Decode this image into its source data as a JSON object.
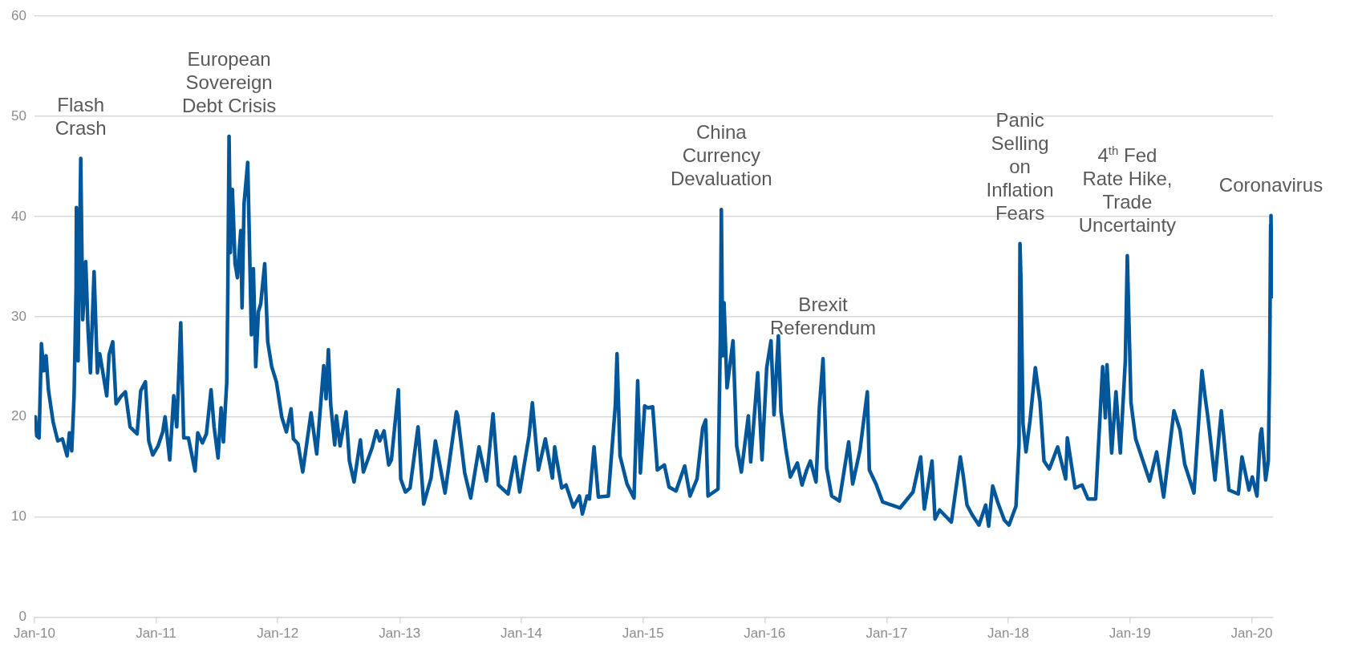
{
  "chart_data": {
    "type": "line",
    "x": [
      "2010-01-04",
      "2010-01-08",
      "2010-01-15",
      "2010-01-22",
      "2010-01-29",
      "2010-02-05",
      "2010-02-12",
      "2010-02-26",
      "2010-03-12",
      "2010-03-26",
      "2010-04-09",
      "2010-04-16",
      "2010-04-23",
      "2010-04-30",
      "2010-05-06",
      "2010-05-07",
      "2010-05-12",
      "2010-05-20",
      "2010-05-26",
      "2010-06-04",
      "2010-06-11",
      "2010-06-18",
      "2010-06-29",
      "2010-07-09",
      "2010-07-16",
      "2010-07-30",
      "2010-08-06",
      "2010-08-13",
      "2010-08-24",
      "2010-09-03",
      "2010-09-17",
      "2010-10-01",
      "2010-10-15",
      "2010-11-05",
      "2010-11-16",
      "2010-11-30",
      "2010-12-10",
      "2010-12-22",
      "2011-01-07",
      "2011-01-21",
      "2011-01-28",
      "2011-02-11",
      "2011-02-23",
      "2011-03-04",
      "2011-03-16",
      "2011-03-25",
      "2011-04-08",
      "2011-04-28",
      "2011-05-06",
      "2011-05-20",
      "2011-06-01",
      "2011-06-15",
      "2011-06-24",
      "2011-07-06",
      "2011-07-15",
      "2011-07-22",
      "2011-08-01",
      "2011-08-04",
      "2011-08-08",
      "2011-08-10",
      "2011-08-12",
      "2011-08-18",
      "2011-08-26",
      "2011-09-02",
      "2011-09-12",
      "2011-09-16",
      "2011-09-22",
      "2011-10-03",
      "2011-10-14",
      "2011-10-20",
      "2011-10-27",
      "2011-11-04",
      "2011-11-11",
      "2011-11-23",
      "2011-12-02",
      "2011-12-14",
      "2011-12-28",
      "2012-01-03",
      "2012-01-13",
      "2012-01-27",
      "2012-02-10",
      "2012-02-17",
      "2012-03-02",
      "2012-03-16",
      "2012-04-10",
      "2012-04-27",
      "2012-05-18",
      "2012-05-25",
      "2012-06-01",
      "2012-06-08",
      "2012-06-20",
      "2012-06-25",
      "2012-07-06",
      "2012-07-24",
      "2012-08-03",
      "2012-08-17",
      "2012-09-05",
      "2012-09-14",
      "2012-10-10",
      "2012-10-23",
      "2012-11-02",
      "2012-11-15",
      "2012-11-29",
      "2012-12-07",
      "2012-12-28",
      "2013-01-04",
      "2013-01-18",
      "2013-02-01",
      "2013-02-25",
      "2013-03-14",
      "2013-04-05",
      "2013-04-18",
      "2013-05-17",
      "2013-06-20",
      "2013-06-24",
      "2013-07-15",
      "2013-08-02",
      "2013-08-27",
      "2013-09-18",
      "2013-10-08",
      "2013-10-24",
      "2013-11-22",
      "2013-12-13",
      "2013-12-27",
      "2014-01-24",
      "2014-02-03",
      "2014-02-21",
      "2014-03-14",
      "2014-04-04",
      "2014-04-11",
      "2014-04-15",
      "2014-05-02",
      "2014-05-15",
      "2014-06-06",
      "2014-06-24",
      "2014-07-03",
      "2014-07-17",
      "2014-07-24",
      "2014-08-07",
      "2014-08-20",
      "2014-09-19",
      "2014-10-10",
      "2014-10-15",
      "2014-10-24",
      "2014-11-14",
      "2014-12-05",
      "2014-12-16",
      "2014-12-24",
      "2015-01-06",
      "2015-01-16",
      "2015-01-30",
      "2015-02-13",
      "2015-03-06",
      "2015-03-20",
      "2015-04-10",
      "2015-05-06",
      "2015-05-22",
      "2015-06-12",
      "2015-06-29",
      "2015-07-08",
      "2015-07-15",
      "2015-08-14",
      "2015-08-21",
      "2015-08-24",
      "2015-08-28",
      "2015-09-01",
      "2015-09-10",
      "2015-09-28",
      "2015-10-09",
      "2015-10-23",
      "2015-11-13",
      "2015-11-20",
      "2015-12-11",
      "2015-12-24",
      "2016-01-07",
      "2016-01-20",
      "2016-01-29",
      "2016-02-11",
      "2016-02-19",
      "2016-03-04",
      "2016-03-18",
      "2016-04-08",
      "2016-04-22",
      "2016-05-06",
      "2016-05-17",
      "2016-06-03",
      "2016-06-13",
      "2016-06-24",
      "2016-07-05",
      "2016-07-20",
      "2016-08-12",
      "2016-09-09",
      "2016-09-21",
      "2016-10-13",
      "2016-11-04",
      "2016-11-10",
      "2016-11-30",
      "2016-12-20",
      "2017-01-06",
      "2017-01-24",
      "2017-02-10",
      "2017-03-21",
      "2017-04-13",
      "2017-04-24",
      "2017-05-17",
      "2017-05-26",
      "2017-06-09",
      "2017-07-14",
      "2017-08-10",
      "2017-08-18",
      "2017-08-30",
      "2017-09-15",
      "2017-10-05",
      "2017-10-25",
      "2017-11-03",
      "2017-11-15",
      "2017-12-01",
      "2017-12-20",
      "2018-01-03",
      "2018-01-24",
      "2018-02-02",
      "2018-02-05",
      "2018-02-08",
      "2018-02-14",
      "2018-02-23",
      "2018-03-07",
      "2018-03-23",
      "2018-04-06",
      "2018-04-18",
      "2018-05-04",
      "2018-05-29",
      "2018-06-22",
      "2018-06-27",
      "2018-07-20",
      "2018-08-10",
      "2018-08-28",
      "2018-09-20",
      "2018-10-11",
      "2018-10-19",
      "2018-10-24",
      "2018-11-07",
      "2018-11-20",
      "2018-12-03",
      "2018-12-18",
      "2018-12-24",
      "2019-01-04",
      "2019-01-18",
      "2019-02-08",
      "2019-03-01",
      "2019-03-22",
      "2019-04-12",
      "2019-05-13",
      "2019-05-31",
      "2019-06-14",
      "2019-07-12",
      "2019-08-05",
      "2019-08-14",
      "2019-08-23",
      "2019-09-13",
      "2019-10-02",
      "2019-10-25",
      "2019-11-22",
      "2019-12-03",
      "2019-12-24",
      "2020-01-03",
      "2020-01-17",
      "2020-01-27",
      "2020-01-31",
      "2020-02-12",
      "2020-02-20",
      "2020-02-24",
      "2020-02-27",
      "2020-02-28",
      "2020-03-02",
      "2020-03-03",
      "2020-03-04"
    ],
    "series": [
      {
        "color": "#02569a",
        "values": [
          20.0,
          18.1,
          17.9,
          27.3,
          24.6,
          26.1,
          22.7,
          19.5,
          17.6,
          17.8,
          16.1,
          18.4,
          16.6,
          22.1,
          32.8,
          40.9,
          25.6,
          45.8,
          29.7,
          35.5,
          28.6,
          24.4,
          34.5,
          24.4,
          26.3,
          23.5,
          22.1,
          26.2,
          27.5,
          21.3,
          22.0,
          22.5,
          19.0,
          18.3,
          22.6,
          23.5,
          17.6,
          16.2,
          17.1,
          18.5,
          20.0,
          15.7,
          22.1,
          19.0,
          29.4,
          17.9,
          17.9,
          14.6,
          18.4,
          17.4,
          18.3,
          22.7,
          19.0,
          15.9,
          20.9,
          17.5,
          23.4,
          31.7,
          48.0,
          42.9,
          36.4,
          42.7,
          35.3,
          33.9,
          38.6,
          30.9,
          41.3,
          45.4,
          28.2,
          34.8,
          25.0,
          30.5,
          31.3,
          35.3,
          27.5,
          25.0,
          23.5,
          22.2,
          20.0,
          18.5,
          20.8,
          17.8,
          17.3,
          14.5,
          20.4,
          16.3,
          25.1,
          21.8,
          26.7,
          21.2,
          17.2,
          20.1,
          17.1,
          20.5,
          15.6,
          13.5,
          17.7,
          14.5,
          16.9,
          18.6,
          17.6,
          18.6,
          15.2,
          15.7,
          22.7,
          13.8,
          12.5,
          12.9,
          19.0,
          11.3,
          13.9,
          17.6,
          12.4,
          20.5,
          20.1,
          14.4,
          11.9,
          17.0,
          13.6,
          20.3,
          13.2,
          12.3,
          16.0,
          12.5,
          18.1,
          21.4,
          14.7,
          17.8,
          13.9,
          17.0,
          16.1,
          12.9,
          13.2,
          11.0,
          12.1,
          10.3,
          12.1,
          11.8,
          17.0,
          12.0,
          12.1,
          21.2,
          26.3,
          16.1,
          13.3,
          11.9,
          23.6,
          14.4,
          21.1,
          20.9,
          21.0,
          14.7,
          15.2,
          13.0,
          12.6,
          15.1,
          12.1,
          13.8,
          18.9,
          19.7,
          12.1,
          12.8,
          28.0,
          40.7,
          26.1,
          31.4,
          22.9,
          27.6,
          17.1,
          14.5,
          20.1,
          15.5,
          24.4,
          15.7,
          24.9,
          27.6,
          20.2,
          28.1,
          20.5,
          16.9,
          14.0,
          15.4,
          13.2,
          14.7,
          15.6,
          13.5,
          20.9,
          25.8,
          14.9,
          12.1,
          11.6,
          17.5,
          13.3,
          16.7,
          22.5,
          14.7,
          13.3,
          11.5,
          11.3,
          11.1,
          10.9,
          12.5,
          16.0,
          10.8,
          15.6,
          9.8,
          10.7,
          9.5,
          16.0,
          14.3,
          11.2,
          10.2,
          9.2,
          11.2,
          9.1,
          13.1,
          11.4,
          9.7,
          9.2,
          11.1,
          17.3,
          37.3,
          33.5,
          19.3,
          16.5,
          19.6,
          24.9,
          21.5,
          15.6,
          14.8,
          17.0,
          13.8,
          17.9,
          12.9,
          13.2,
          11.8,
          11.8,
          25.0,
          19.9,
          25.2,
          16.4,
          22.5,
          16.4,
          25.6,
          36.1,
          21.4,
          17.8,
          15.7,
          13.6,
          16.5,
          12.0,
          20.6,
          18.7,
          15.3,
          12.4,
          24.6,
          22.1,
          19.9,
          13.7,
          20.6,
          12.7,
          12.3,
          16.0,
          12.7,
          14.0,
          12.1,
          18.2,
          18.8,
          13.7,
          15.6,
          25.0,
          39.2,
          40.1,
          33.4,
          36.8,
          32.0
        ]
      }
    ],
    "xlim": [
      "2010-01-01",
      "2020-03-05"
    ],
    "xticks": [
      {
        "value": "2010-01-01",
        "label": "Jan-10"
      },
      {
        "value": "2011-01-01",
        "label": "Jan-11"
      },
      {
        "value": "2012-01-01",
        "label": "Jan-12"
      },
      {
        "value": "2013-01-01",
        "label": "Jan-13"
      },
      {
        "value": "2014-01-01",
        "label": "Jan-14"
      },
      {
        "value": "2015-01-01",
        "label": "Jan-15"
      },
      {
        "value": "2016-01-01",
        "label": "Jan-16"
      },
      {
        "value": "2017-01-01",
        "label": "Jan-17"
      },
      {
        "value": "2018-01-01",
        "label": "Jan-18"
      },
      {
        "value": "2019-01-01",
        "label": "Jan-19"
      },
      {
        "value": "2020-01-01",
        "label": "Jan-20"
      }
    ],
    "ylim": [
      0,
      60
    ],
    "yticks": [
      0,
      10,
      20,
      30,
      40,
      50,
      60
    ],
    "grid": "y",
    "legend": false,
    "marker": "none",
    "line_style": "solid",
    "annotations": [
      {
        "text": "Flash\nCrash",
        "x": "2010-05-20",
        "y": 45.8
      },
      {
        "text": "European\nSovereign\nDebt Crisis",
        "x": "2011-08-08",
        "y": 48.0
      },
      {
        "text": "China\nCurrency\nDevaluation",
        "x": "2015-08-24",
        "y": 40.7
      },
      {
        "text": "Brexit\nReferendum",
        "x": "2016-06-24",
        "y": 25.8
      },
      {
        "text": "Panic\nSelling\non\nInflation\nFears",
        "x": "2018-02-05",
        "y": 37.3
      },
      {
        "text": "4$^{th}$ Fed\nRate Hike,\nTrade\nUncertainty",
        "x": "2018-12-24",
        "y": 36.1
      },
      {
        "text": "Coronavirus",
        "x": "2020-02-28",
        "y": 40.1
      }
    ]
  }
}
